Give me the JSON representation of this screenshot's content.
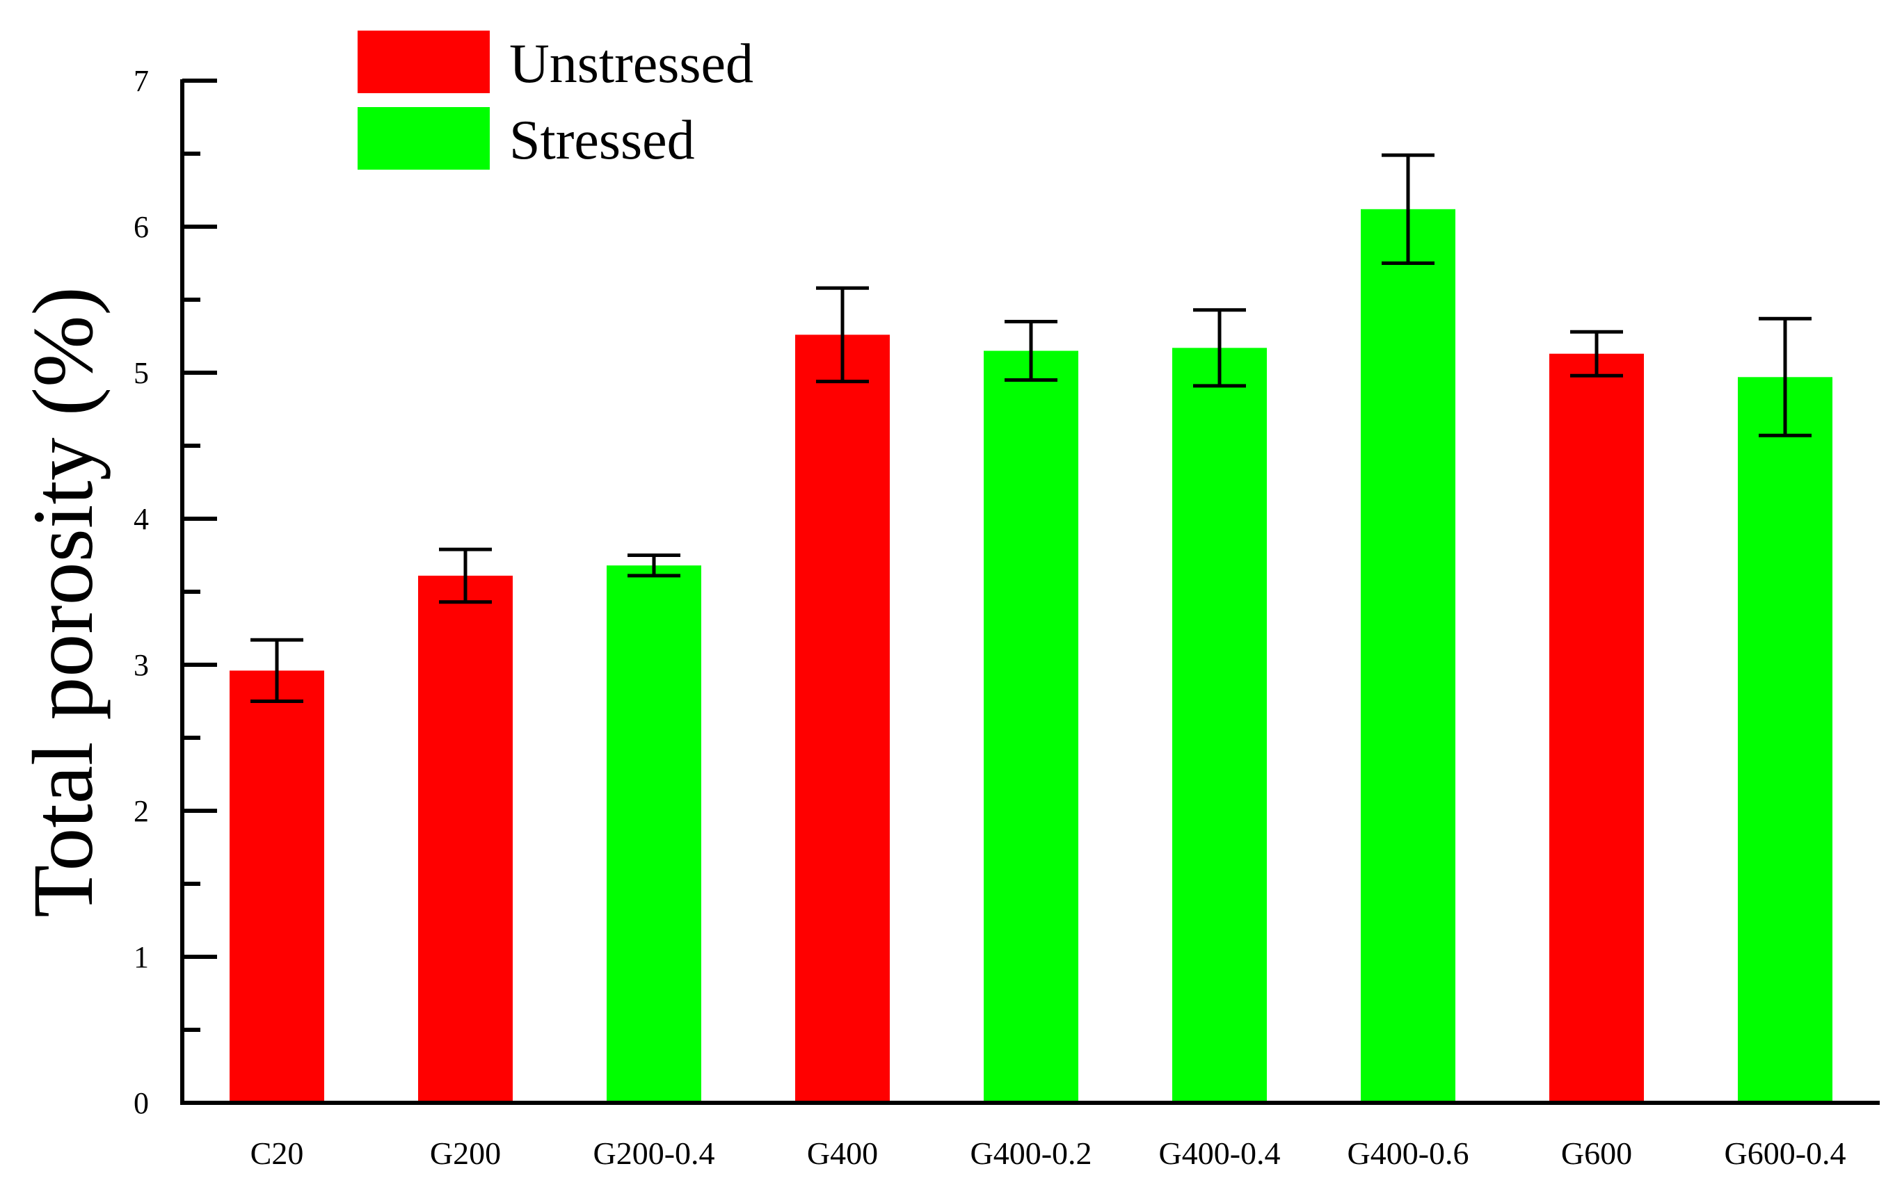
{
  "chart_data": {
    "type": "bar",
    "title": "",
    "xlabel": "",
    "ylabel": "Total porosity (%)",
    "ylim": [
      0,
      7
    ],
    "yticks": [
      "0",
      "1",
      "2",
      "3",
      "4",
      "5",
      "6",
      "7"
    ],
    "categories": [
      "C20",
      "G200",
      "G200-0.4",
      "G400",
      "G400-0.2",
      "G400-0.4",
      "G400-0.6",
      "G600",
      "G600-0.4"
    ],
    "values": [
      2.96,
      3.61,
      3.68,
      5.26,
      5.15,
      5.17,
      6.12,
      5.13,
      4.97
    ],
    "errors": [
      0.21,
      0.18,
      0.07,
      0.32,
      0.2,
      0.26,
      0.37,
      0.15,
      0.4
    ],
    "groups": [
      "Unstressed",
      "Unstressed",
      "Stressed",
      "Unstressed",
      "Stressed",
      "Stressed",
      "Stressed",
      "Unstressed",
      "Stressed"
    ],
    "legend": [
      {
        "name": "Unstressed",
        "color": "#ff0000"
      },
      {
        "name": "Stressed",
        "color": "#00ff00"
      }
    ],
    "legend_position": "top-left",
    "grid": false
  }
}
